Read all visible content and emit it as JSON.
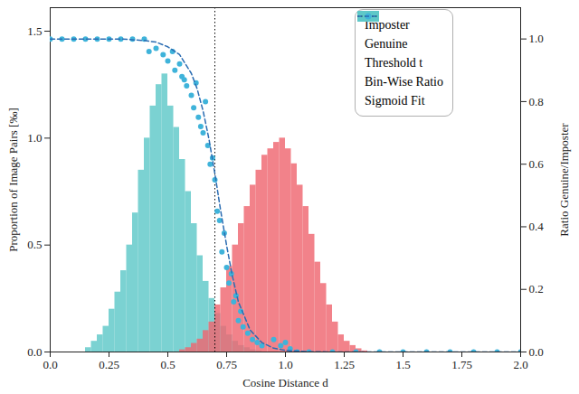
{
  "chart_data": {
    "type": "histogram",
    "xlabel": "Cosine Distance d",
    "ylabel": "Proportion of Image Pairs [‰]",
    "y2label": "Ratio Genuine/Imposter",
    "xlim": [
      0,
      2
    ],
    "xticks": [
      {
        "value": 0,
        "label": "0.0"
      },
      0.25,
      0.5,
      0.75,
      {
        "value": 1,
        "label": "1.0"
      },
      1.25,
      1.5,
      1.75,
      {
        "value": 2,
        "label": "2.0"
      }
    ],
    "ylim": [
      0,
      1.61
    ],
    "yticks": [
      {
        "value": 0,
        "label": "0.0"
      },
      0.5,
      {
        "value": 1,
        "label": "1.0"
      },
      1.5
    ],
    "y2lim": [
      0,
      1.1
    ],
    "y2ticks": [
      {
        "value": 0,
        "label": "0.0"
      },
      0.2,
      0.4,
      0.6,
      0.8,
      {
        "value": 1,
        "label": "1.0"
      }
    ],
    "legend": "upper right",
    "series": [
      {
        "name": "Imposter",
        "type": "histogram",
        "color": "#ef6670",
        "bins": [
          0.55,
          0.575,
          0.6,
          0.625,
          0.65,
          0.675,
          0.7,
          0.725,
          0.75,
          0.775,
          0.8,
          0.825,
          0.85,
          0.875,
          0.9,
          0.925,
          0.95,
          0.975,
          1.0,
          1.025,
          1.05,
          1.075,
          1.1,
          1.125,
          1.15,
          1.175,
          1.2,
          1.225,
          1.25,
          1.275,
          1.3,
          1.325,
          1.35
        ],
        "values": [
          0.01,
          0.02,
          0.04,
          0.06,
          0.1,
          0.14,
          0.22,
          0.3,
          0.4,
          0.5,
          0.6,
          0.68,
          0.78,
          0.85,
          0.92,
          0.95,
          0.98,
          1.0,
          0.95,
          0.88,
          0.78,
          0.68,
          0.55,
          0.42,
          0.32,
          0.22,
          0.14,
          0.08,
          0.05,
          0.03,
          0.015,
          0.005
        ]
      },
      {
        "name": "Genuine",
        "type": "histogram",
        "color": "#5ec8c8",
        "bins": [
          0.15,
          0.175,
          0.2,
          0.225,
          0.25,
          0.275,
          0.3,
          0.325,
          0.35,
          0.375,
          0.4,
          0.425,
          0.45,
          0.475,
          0.5,
          0.525,
          0.55,
          0.575,
          0.6,
          0.625,
          0.65,
          0.675,
          0.7,
          0.725,
          0.75,
          0.775,
          0.8,
          0.825,
          0.85,
          0.875,
          0.9
        ],
        "values": [
          0.02,
          0.05,
          0.08,
          0.12,
          0.2,
          0.28,
          0.38,
          0.5,
          0.65,
          0.85,
          1.0,
          1.15,
          1.25,
          1.3,
          1.15,
          1.05,
          0.9,
          0.75,
          0.6,
          0.45,
          0.33,
          0.25,
          0.18,
          0.12,
          0.08,
          0.05,
          0.03,
          0.02,
          0.01,
          0.005
        ]
      },
      {
        "name": "Threshold t",
        "type": "vline",
        "color": "#000000",
        "line_style": "dotted",
        "x": [
          0.7
        ]
      },
      {
        "name": "Bin-Wise Ratio",
        "type": "scatter",
        "axis": "y2",
        "color": "#3fb3da",
        "marker": "circle",
        "x": [
          0,
          0.05,
          0.1,
          0.15,
          0.2,
          0.25,
          0.3,
          0.35,
          0.4,
          0.42,
          0.45,
          0.48,
          0.5,
          0.52,
          0.53,
          0.55,
          0.56,
          0.57,
          0.58,
          0.6,
          0.61,
          0.62,
          0.63,
          0.64,
          0.65,
          0.66,
          0.67,
          0.68,
          0.69,
          0.7,
          0.71,
          0.72,
          0.73,
          0.74,
          0.75,
          0.76,
          0.77,
          0.78,
          0.79,
          0.8,
          0.81,
          0.82,
          0.84,
          0.86,
          0.88,
          0.9,
          0.95,
          0.98,
          1.0,
          1.02,
          1.05,
          1.1,
          1.2,
          1.3,
          1.4,
          1.5,
          1.6,
          1.7,
          1.8,
          1.9,
          2.0
        ],
        "values": [
          1.0,
          1.0,
          1.0,
          1.0,
          1.0,
          1.0,
          1.0,
          1.0,
          1.0,
          0.96,
          0.97,
          0.95,
          0.93,
          0.96,
          0.9,
          0.92,
          0.88,
          0.87,
          0.85,
          0.82,
          0.78,
          0.86,
          0.75,
          0.72,
          0.7,
          0.8,
          0.66,
          0.6,
          0.62,
          0.55,
          0.45,
          0.42,
          0.32,
          0.38,
          0.27,
          0.22,
          0.25,
          0.16,
          0.18,
          0.1,
          0.13,
          0.08,
          0.06,
          0.04,
          0.03,
          0.02,
          0.04,
          0.02,
          0.03,
          0.01,
          0.0,
          0.0,
          0.0,
          0.0,
          0.0,
          0.0,
          0.0,
          0.0,
          0.0,
          0.0,
          0.0
        ]
      },
      {
        "name": "Sigmoid Fit",
        "type": "line",
        "axis": "y2",
        "color": "#2a6cb2",
        "line_style": "dashed",
        "x": [
          0,
          0.1,
          0.2,
          0.3,
          0.4,
          0.45,
          0.5,
          0.55,
          0.6,
          0.625,
          0.65,
          0.675,
          0.7,
          0.725,
          0.75,
          0.775,
          0.8,
          0.85,
          0.9,
          0.95,
          1.0,
          1.1,
          1.2,
          1.4,
          1.6,
          1.8,
          2.0
        ],
        "values": [
          1.0,
          1.0,
          1.0,
          1.0,
          0.995,
          0.99,
          0.975,
          0.95,
          0.89,
          0.84,
          0.77,
          0.68,
          0.57,
          0.45,
          0.34,
          0.24,
          0.16,
          0.07,
          0.03,
          0.012,
          0.005,
          0.001,
          0,
          0,
          0,
          0,
          0
        ]
      }
    ]
  }
}
